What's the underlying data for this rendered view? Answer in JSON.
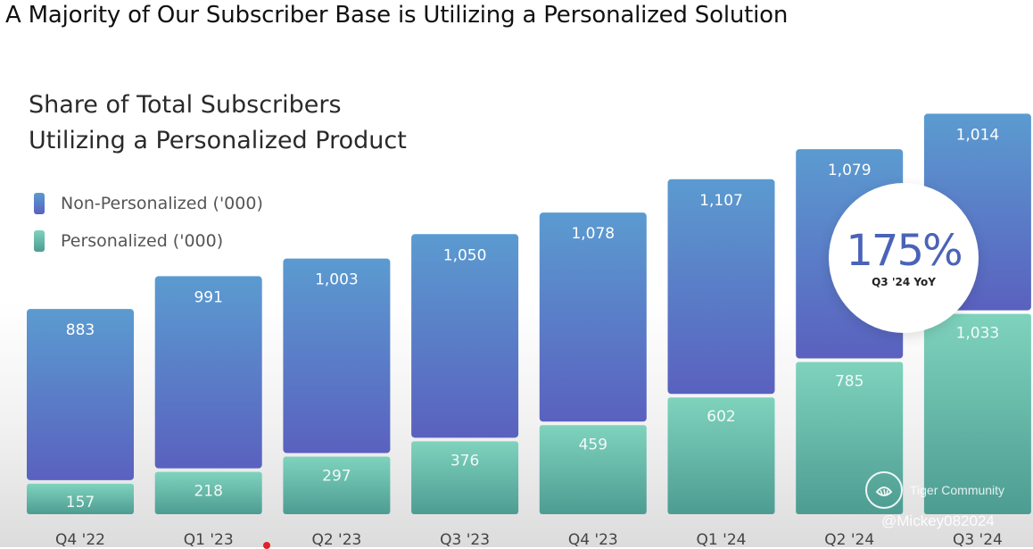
{
  "headline": "A Majority of Our Subscriber Base is Utilizing a Personalized Solution",
  "chart_data": {
    "type": "bar",
    "stacked": true,
    "title_line1": "Share of Total Subscribers",
    "title_line2": "Utilizing a Personalized Product",
    "categories": [
      "Q4 '22",
      "Q1 '23",
      "Q2 '23",
      "Q3 '23",
      "Q4 '23",
      "Q1 '24",
      "Q2 '24",
      "Q3 '24"
    ],
    "series": [
      {
        "name": "Personalized ('000)",
        "values": [
          157,
          218,
          297,
          376,
          459,
          602,
          785,
          1033
        ],
        "color": "#6cc7b0"
      },
      {
        "name": "Non-Personalized ('000)",
        "values": [
          883,
          991,
          1003,
          1050,
          1078,
          1107,
          1079,
          1014
        ],
        "color": "#5b6fcb"
      }
    ],
    "legend_position": "top-left",
    "grid": false
  },
  "colors": {
    "non_personalized_top": "#5b9bd0",
    "non_personalized_bottom": "#5a61bf",
    "personalized_top": "#7fd3bd",
    "personalized_bottom": "#4d9c92"
  },
  "badge": {
    "value": "175%",
    "label": "Q3 '24 YoY"
  },
  "watermark": {
    "brand": "Tiger Community",
    "user": "@Mickey082024",
    "icon": "tiger-logo-icon"
  }
}
